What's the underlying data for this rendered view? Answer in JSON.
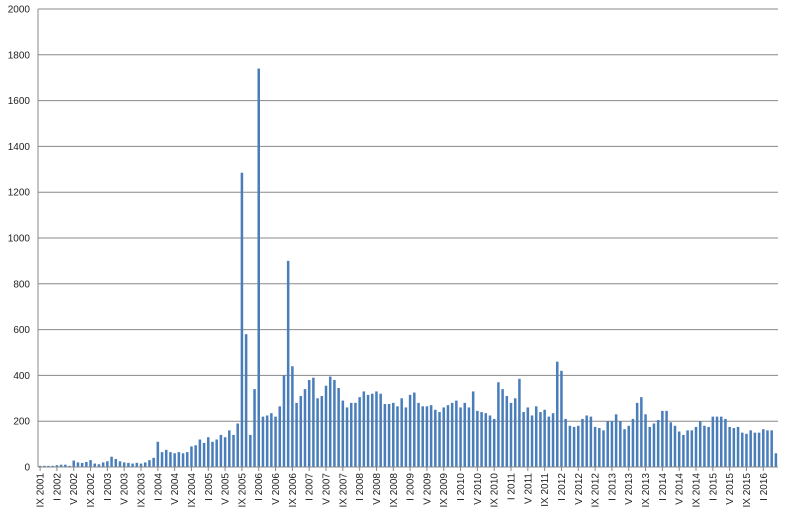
{
  "chart_data": {
    "type": "bar",
    "color": "#4a7ebb",
    "grid": true,
    "ylim": [
      0,
      2000
    ],
    "yticks": [
      0,
      200,
      400,
      600,
      800,
      1000,
      1200,
      1400,
      1600,
      1800,
      2000
    ],
    "categories": [
      "IX 2001",
      null,
      null,
      null,
      "I 2002",
      null,
      null,
      null,
      "V 2002",
      null,
      null,
      null,
      "IX 2002",
      null,
      null,
      null,
      "I 2003",
      null,
      null,
      null,
      "V 2003",
      null,
      null,
      null,
      "IX 2003",
      null,
      null,
      null,
      "I 2004",
      null,
      null,
      null,
      "V 2004",
      null,
      null,
      null,
      "IX 2004",
      null,
      null,
      null,
      "I 2005",
      null,
      null,
      null,
      "V 2005",
      null,
      null,
      null,
      "IX 2005",
      null,
      null,
      null,
      "I 2006",
      null,
      null,
      null,
      "V 2006",
      null,
      null,
      null,
      "IX 2006",
      null,
      null,
      null,
      "I 2007",
      null,
      null,
      null,
      "V 2007",
      null,
      null,
      null,
      "IX 2007",
      null,
      null,
      null,
      "I 2008",
      null,
      null,
      null,
      "V 2008",
      null,
      null,
      null,
      "IX 2008",
      null,
      null,
      null,
      "I 2009",
      null,
      null,
      null,
      "V 2009",
      null,
      null,
      null,
      "IX 2009",
      null,
      null,
      null,
      "I 2010",
      null,
      null,
      null,
      "V 2010",
      null,
      null,
      null,
      "IX 2010",
      null,
      null,
      null,
      "I 2011",
      null,
      null,
      null,
      "V 2011",
      null,
      null,
      null,
      "IX 2011",
      null,
      null,
      null,
      "I 2012",
      null,
      null,
      null,
      "V 2012",
      null,
      null,
      null,
      "IX 2012",
      null,
      null,
      null,
      "I 2013",
      null,
      null,
      null,
      "V 2013",
      null,
      null,
      null,
      "IX 2013",
      null,
      null,
      null,
      "I 2014",
      null,
      null,
      null,
      "V 2014",
      null,
      null,
      null,
      "IX 2014",
      null,
      null,
      null,
      "I 2015",
      null,
      null,
      null,
      "V 2015",
      null,
      null,
      null,
      "IX 2015",
      null,
      null,
      null,
      "I 2016",
      null,
      null,
      null
    ],
    "values": [
      5,
      5,
      5,
      5,
      8,
      10,
      10,
      5,
      28,
      20,
      18,
      22,
      30,
      15,
      12,
      20,
      25,
      45,
      35,
      25,
      20,
      18,
      15,
      18,
      15,
      20,
      30,
      40,
      110,
      65,
      75,
      65,
      60,
      65,
      60,
      65,
      90,
      95,
      120,
      105,
      130,
      110,
      120,
      140,
      130,
      160,
      140,
      190,
      1285,
      580,
      140,
      340,
      1740,
      220,
      225,
      235,
      220,
      265,
      400,
      900,
      440,
      280,
      310,
      340,
      380,
      390,
      300,
      310,
      355,
      395,
      380,
      345,
      290,
      260,
      280,
      280,
      305,
      330,
      315,
      320,
      330,
      320,
      275,
      275,
      280,
      265,
      300,
      260,
      315,
      325,
      280,
      265,
      265,
      270,
      250,
      240,
      260,
      270,
      280,
      290,
      260,
      280,
      260,
      330,
      245,
      240,
      235,
      225,
      210,
      370,
      340,
      310,
      280,
      300,
      385,
      240,
      260,
      225,
      265,
      240,
      250,
      220,
      235,
      460,
      420,
      210,
      180,
      175,
      180,
      210,
      225,
      220,
      175,
      170,
      160,
      200,
      200,
      230,
      200,
      165,
      180,
      210,
      280,
      305,
      230,
      175,
      190,
      205,
      245,
      245,
      195,
      180,
      155,
      140,
      160,
      160,
      175,
      200,
      180,
      175,
      220,
      220,
      220,
      210,
      175,
      170,
      175,
      150,
      145,
      160,
      150,
      150,
      165,
      160,
      160,
      60
    ]
  }
}
